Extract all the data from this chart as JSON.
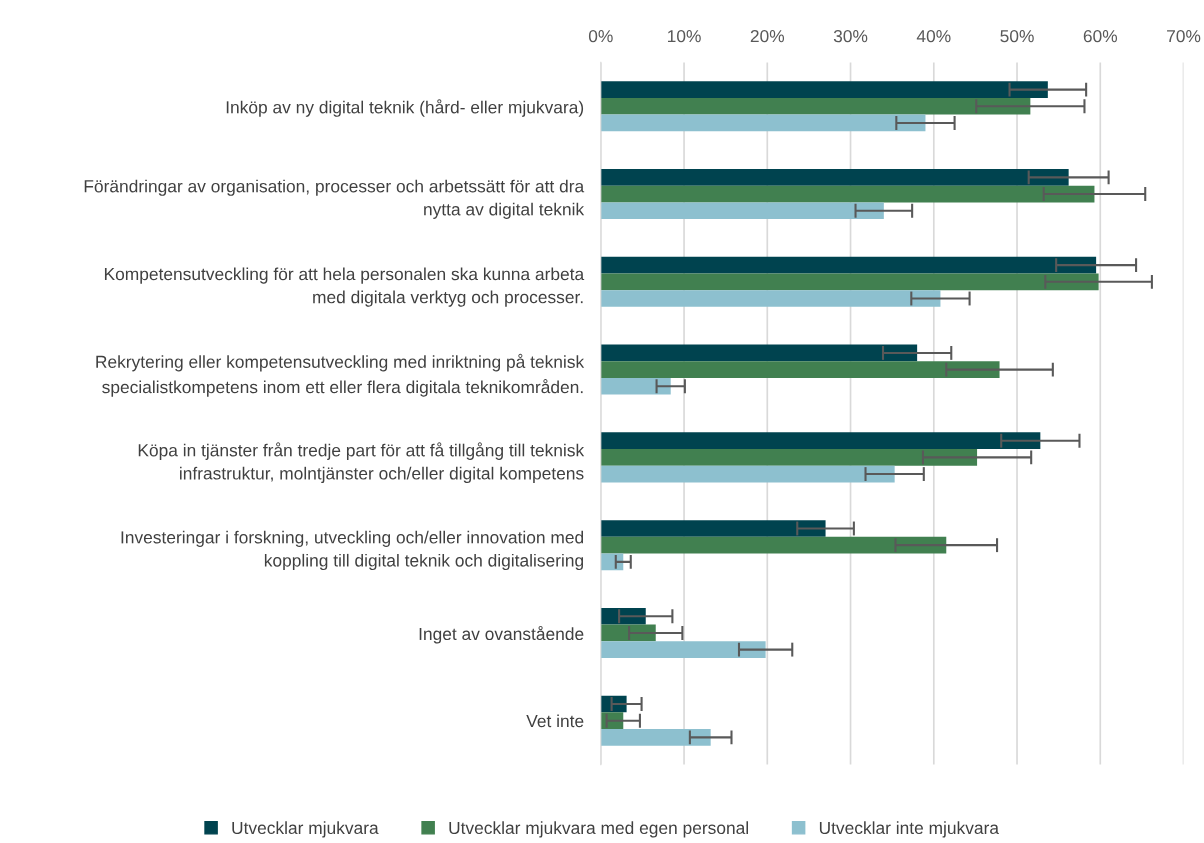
{
  "chart_data": {
    "type": "bar",
    "orientation": "horizontal",
    "categories": [
      "Inköp av ny digital teknik (hård- eller mjukvara)",
      "Förändringar av organisation, processer och arbetssätt för att dra\nnytta av digital teknik",
      "Kompetensutveckling för att hela personalen ska kunna arbeta\nmed digitala verktyg och processer.",
      "Rekrytering eller kompetensutveckling med inriktning på teknisk\nspecialistkompetens inom ett eller flera digitala teknikområden.",
      "Köpa in tjänster från tredje part för att få tillgång till teknisk\ninfrastruktur, molntjänster och/eller digital kompetens",
      "Investeringar i forskning, utveckling och/eller innovation med\nkoppling till digital teknik och digitalisering",
      "Inget av ovanstående",
      "Vet inte"
    ],
    "series": [
      {
        "name": "Utvecklar mjukvara",
        "color": "#00434f",
        "values": [
          53.7,
          56.2,
          59.5,
          38.0,
          52.8,
          27.0,
          5.4,
          3.1
        ],
        "errors": [
          4.6,
          4.8,
          4.8,
          4.1,
          4.7,
          3.4,
          3.2,
          1.8
        ]
      },
      {
        "name": "Utvecklar mjukvara med egen personal",
        "color": "#418050",
        "values": [
          51.6,
          59.3,
          59.8,
          47.9,
          45.2,
          41.5,
          6.6,
          2.7
        ],
        "errors": [
          6.5,
          6.1,
          6.4,
          6.4,
          6.5,
          6.1,
          3.2,
          2.0
        ]
      },
      {
        "name": "Utvecklar inte mjukvara",
        "color": "#8dc0cf",
        "values": [
          39.0,
          34.0,
          40.8,
          8.4,
          35.3,
          2.7,
          19.8,
          13.2
        ],
        "errors": [
          3.5,
          3.4,
          3.5,
          1.7,
          3.5,
          0.9,
          3.2,
          2.5
        ]
      }
    ],
    "xlim": [
      0,
      70
    ],
    "xticks": [
      {
        "value": 0,
        "label": "0%"
      },
      {
        "value": 10,
        "label": "10%"
      },
      {
        "value": 20,
        "label": "20%"
      },
      {
        "value": 30,
        "label": "30%"
      },
      {
        "value": 40,
        "label": "40%"
      },
      {
        "value": 50,
        "label": "50%"
      },
      {
        "value": 60,
        "label": "60%"
      },
      {
        "value": 70,
        "label": "70%"
      }
    ],
    "grid": "x",
    "legend": "bottom"
  }
}
